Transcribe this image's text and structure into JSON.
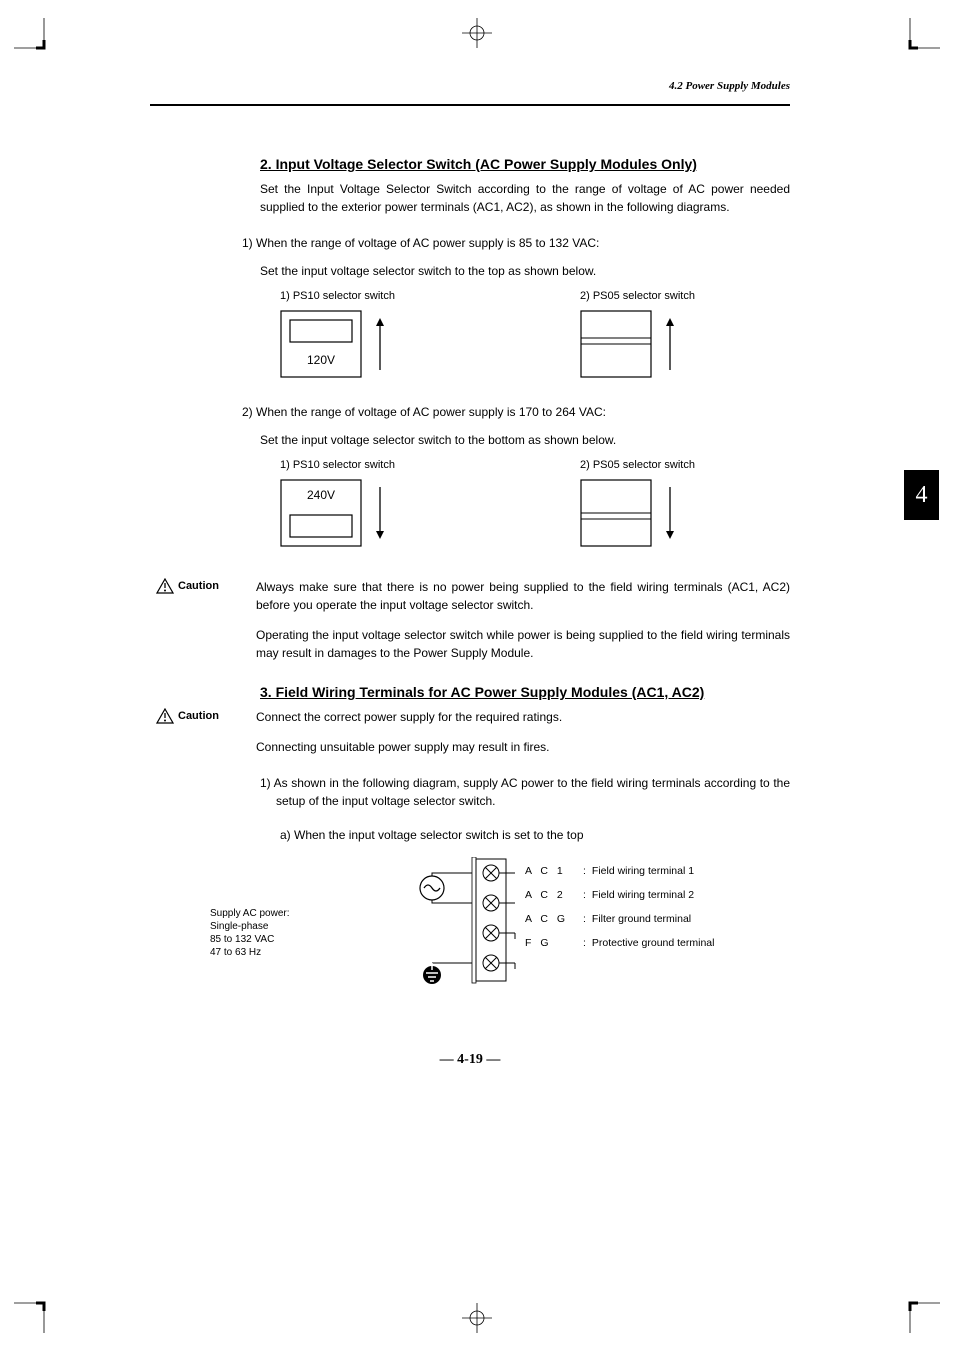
{
  "header": {
    "running": "4.2 Power Supply Modules"
  },
  "chapter_tab": "4",
  "page_number": "— 4-19 —",
  "section2": {
    "title": "2.  Input Voltage Selector Switch (AC Power Supply Modules Only)",
    "intro": "Set the Input Voltage Selector Switch according to the range of voltage of AC power needed supplied to the exterior power terminals (AC1, AC2), as shown in the following diagrams.",
    "case1": {
      "line": "1)  When the range of voltage of AC power supply is 85 to 132 VAC:",
      "instr": "Set the input voltage selector switch to the top as shown below.",
      "d1_label": "1)  PS10 selector switch",
      "d2_label": "2)  PS05 selector switch",
      "value": "120V"
    },
    "case2": {
      "line": "2)  When the range of voltage of AC power supply is 170 to 264 VAC:",
      "instr": "Set the input voltage selector switch to the bottom as shown below.",
      "d1_label": "1)  PS10 selector switch",
      "d2_label": "2)  PS05 selector switch",
      "value": "240V"
    },
    "caution": {
      "label": "Caution",
      "p1": "Always make sure that there is no power being supplied to the field wiring terminals (AC1, AC2) before you operate the input voltage selector switch.",
      "p2": "Operating the input voltage selector switch while power is being supplied to the field wiring terminals may result in damages to the Power Supply Module."
    }
  },
  "section3": {
    "title": "3.  Field Wiring Terminals for AC Power Supply Modules (AC1, AC2)",
    "caution": {
      "label": "Caution",
      "p1": "Connect the correct power supply for the required ratings.",
      "p2": "Connecting unsuitable power supply may result in fires."
    },
    "step1": "1)  As shown in the following diagram, supply AC power to the field wiring terminals according to the setup of the input voltage selector switch.",
    "step1a": "a)  When the input voltage selector switch is set to the top",
    "supply": {
      "l1": "Supply AC power:",
      "l2": "Single-phase",
      "l3": "85 to 132 VAC",
      "l4": "47 to 63 Hz"
    },
    "terminals": [
      {
        "code": "A C 1",
        "desc": "Field wiring terminal 1"
      },
      {
        "code": "A C 2",
        "desc": "Field wiring terminal 2"
      },
      {
        "code": "A C G",
        "desc": "Filter ground terminal"
      },
      {
        "code": "F G",
        "desc": "Protective ground terminal"
      }
    ]
  },
  "colors": {
    "ink": "#000000",
    "paper": "#ffffff"
  }
}
